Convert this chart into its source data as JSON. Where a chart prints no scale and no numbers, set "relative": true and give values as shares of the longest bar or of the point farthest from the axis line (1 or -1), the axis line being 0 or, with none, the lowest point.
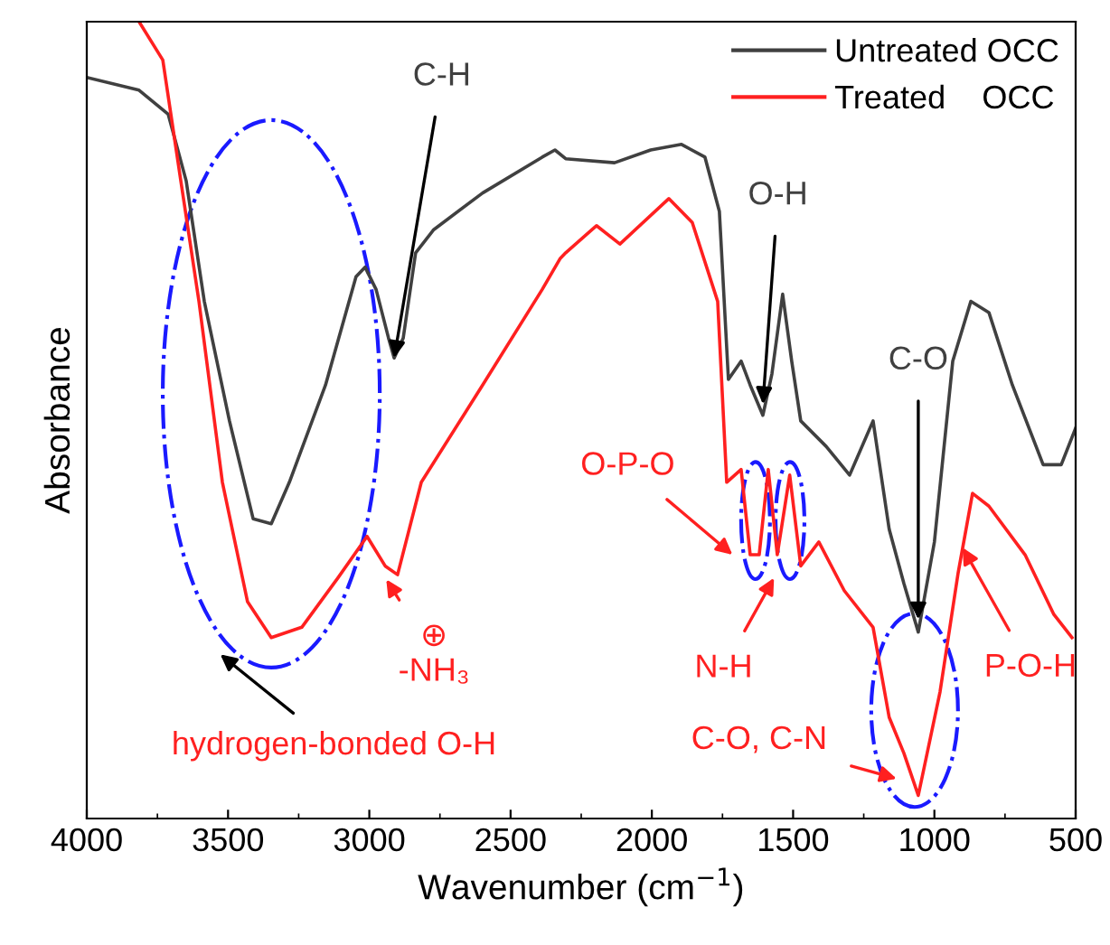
{
  "chart_data": {
    "type": "line",
    "relative": true,
    "xlabel": "Wavenumber (cm$^{−1}$)",
    "ylabel": "Absorbance",
    "xlim": [
      4000,
      500
    ],
    "xticks": [
      4000,
      3500,
      3000,
      2500,
      2000,
      1500,
      1000,
      500
    ],
    "legend": "top right",
    "grid": false,
    "series": [
      {
        "name": "Untreated OCC",
        "color": "#404040",
        "x": [
          4000,
          3815,
          3712,
          3648,
          3584,
          3495,
          3411,
          3347,
          3283,
          3155,
          3047,
          3015,
          2976,
          2932,
          2912,
          2880,
          2836,
          2772,
          2599,
          2388,
          2343,
          2305,
          2132,
          2004,
          1895,
          1812,
          1761,
          1729,
          1684,
          1652,
          1607,
          1575,
          1537,
          1505,
          1473,
          1383,
          1300,
          1217,
          1160,
          1108,
          1057,
          1000,
          935,
          871,
          807,
          724,
          615,
          551,
          500
        ],
        "values": [
          0.93,
          0.914,
          0.884,
          0.8,
          0.649,
          0.499,
          0.376,
          0.37,
          0.422,
          0.544,
          0.68,
          0.692,
          0.664,
          0.603,
          0.578,
          0.603,
          0.71,
          0.739,
          0.785,
          0.83,
          0.839,
          0.828,
          0.823,
          0.839,
          0.846,
          0.83,
          0.762,
          0.551,
          0.574,
          0.544,
          0.506,
          0.558,
          0.658,
          0.574,
          0.499,
          0.467,
          0.431,
          0.499,
          0.363,
          0.295,
          0.234,
          0.347,
          0.574,
          0.649,
          0.635,
          0.544,
          0.444,
          0.444,
          0.49
        ]
      },
      {
        "name": "Treated    OCC",
        "color": "#ff2020",
        "x": [
          3815,
          3731,
          3667,
          3603,
          3520,
          3431,
          3347,
          3239,
          3111,
          3008,
          2944,
          2900,
          2816,
          2599,
          2388,
          2324,
          2305,
          2196,
          2113,
          1940,
          1857,
          1767,
          1735,
          1684,
          1652,
          1620,
          1588,
          1556,
          1512,
          1473,
          1409,
          1319,
          1217,
          1160,
          1108,
          1057,
          980,
          916,
          865,
          807,
          679,
          577,
          513
        ],
        "values": [
          1.0,
          0.952,
          0.8,
          0.649,
          0.422,
          0.272,
          0.227,
          0.24,
          0.302,
          0.354,
          0.317,
          0.306,
          0.422,
          0.544,
          0.664,
          0.703,
          0.71,
          0.744,
          0.721,
          0.778,
          0.748,
          0.649,
          0.422,
          0.438,
          0.331,
          0.331,
          0.438,
          0.331,
          0.431,
          0.317,
          0.347,
          0.286,
          0.24,
          0.127,
          0.082,
          0.029,
          0.159,
          0.308,
          0.408,
          0.392,
          0.331,
          0.256,
          0.227
        ]
      }
    ],
    "annotations": [
      {
        "text": "C-H",
        "x": 2912,
        "y": 0.578
      },
      {
        "text": "O-H",
        "x": 1607,
        "y": 0.52
      },
      {
        "text": "C-O",
        "x": 1057,
        "y": 0.25
      },
      "O-P-O",
      "N-H",
      {
        "text": "⊕\n-NH₃",
        "x": 2940,
        "y": 0.3
      },
      "hydrogen-bonded O-H",
      "C-O, C-N",
      {
        "text": "P-O-H",
        "x": 900,
        "y": 0.34
      }
    ]
  }
}
